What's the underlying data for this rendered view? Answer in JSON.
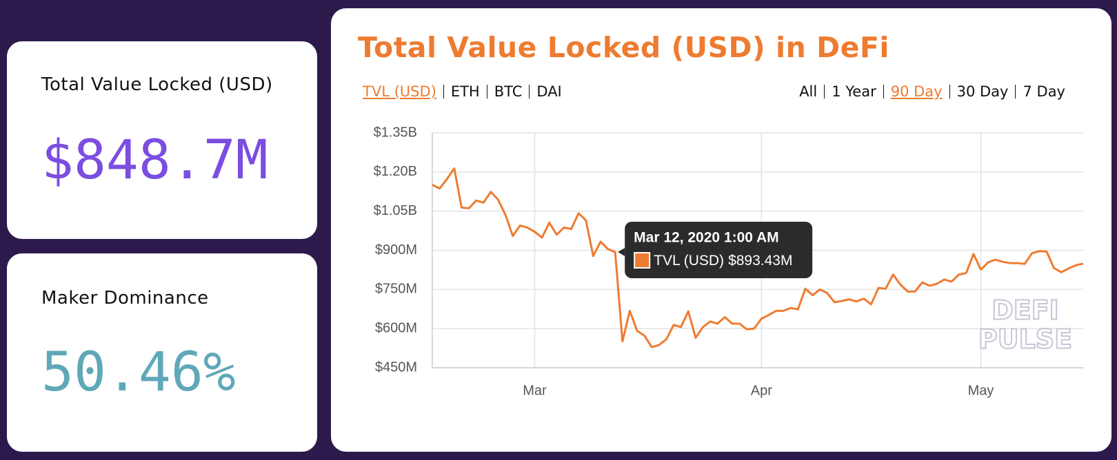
{
  "cards": [
    {
      "label": "Total Value Locked (USD)",
      "value": "$848.7M"
    },
    {
      "label": "Maker Dominance",
      "value": "50.46%"
    }
  ],
  "tabs": {
    "metrics": [
      "TVL (USD)",
      "ETH",
      "BTC",
      "DAI"
    ],
    "ranges": [
      "All",
      "1 Year",
      "90 Day",
      "30 Day",
      "7 Day"
    ]
  },
  "watermark": [
    "DEFI",
    "PULSE"
  ],
  "chart_data": {
    "type": "line",
    "title": "Total Value Locked (USD) in DeFi",
    "categories": [
      null,
      null,
      null,
      null,
      null,
      null,
      null,
      null,
      null,
      null,
      null,
      null,
      null,
      null,
      "Mar",
      null,
      null,
      null,
      null,
      null,
      null,
      null,
      null,
      null,
      null,
      null,
      null,
      null,
      null,
      null,
      null,
      null,
      null,
      null,
      null,
      null,
      null,
      null,
      null,
      null,
      null,
      null,
      null,
      null,
      null,
      "Apr",
      null,
      null,
      null,
      null,
      null,
      null,
      null,
      null,
      null,
      null,
      null,
      null,
      null,
      null,
      null,
      null,
      null,
      null,
      null,
      null,
      null,
      null,
      null,
      null,
      null,
      null,
      null,
      null,
      null,
      "May",
      null,
      null,
      null,
      null,
      null,
      null,
      null,
      null,
      null,
      null,
      null,
      null,
      null,
      null
    ],
    "series": [
      {
        "name": "TVL (USD)",
        "color": "#ee7b30",
        "values": [
          1151000000,
          1137000000,
          1173000000,
          1214000000,
          1064000000,
          1061000000,
          1091000000,
          1083000000,
          1124000000,
          1094000000,
          1036000000,
          955000000,
          995000000,
          987000000,
          971000000,
          949000000,
          1006000000,
          960000000,
          987000000,
          982000000,
          1042000000,
          1015000000,
          878000000,
          933000000,
          905000000,
          893430000,
          551000000,
          668000000,
          592000000,
          573000000,
          529000000,
          537000000,
          559000000,
          614000000,
          606000000,
          666000000,
          565000000,
          606000000,
          627000000,
          619000000,
          644000000,
          619000000,
          619000000,
          597000000,
          600000000,
          638000000,
          652000000,
          668000000,
          668000000,
          679000000,
          674000000,
          753000000,
          728000000,
          750000000,
          736000000,
          701000000,
          706000000,
          712000000,
          704000000,
          715000000,
          693000000,
          756000000,
          753000000,
          807000000,
          769000000,
          742000000,
          742000000,
          777000000,
          764000000,
          772000000,
          788000000,
          780000000,
          807000000,
          813000000,
          886000000,
          826000000,
          854000000,
          864000000,
          856000000,
          851000000,
          851000000,
          848000000,
          889000000,
          897000000,
          895000000,
          832000000,
          816000000,
          830000000,
          843000000,
          848700000
        ]
      }
    ],
    "ylim": [
      450000000,
      1350000000
    ],
    "yticks": [
      {
        "value": 450000000,
        "label": "$450M"
      },
      {
        "value": 600000000,
        "label": "$600M"
      },
      {
        "value": 750000000,
        "label": "$750M"
      },
      {
        "value": 900000000,
        "label": "$900M"
      },
      {
        "value": 1050000000,
        "label": "$1.05B"
      },
      {
        "value": 1200000000,
        "label": "$1.20B"
      },
      {
        "value": 1350000000,
        "label": "$1.35B"
      }
    ],
    "grid": true,
    "tooltip": {
      "index": 25,
      "date": "Mar 12, 2020 1:00 AM",
      "value_label": "$893.43M"
    }
  }
}
